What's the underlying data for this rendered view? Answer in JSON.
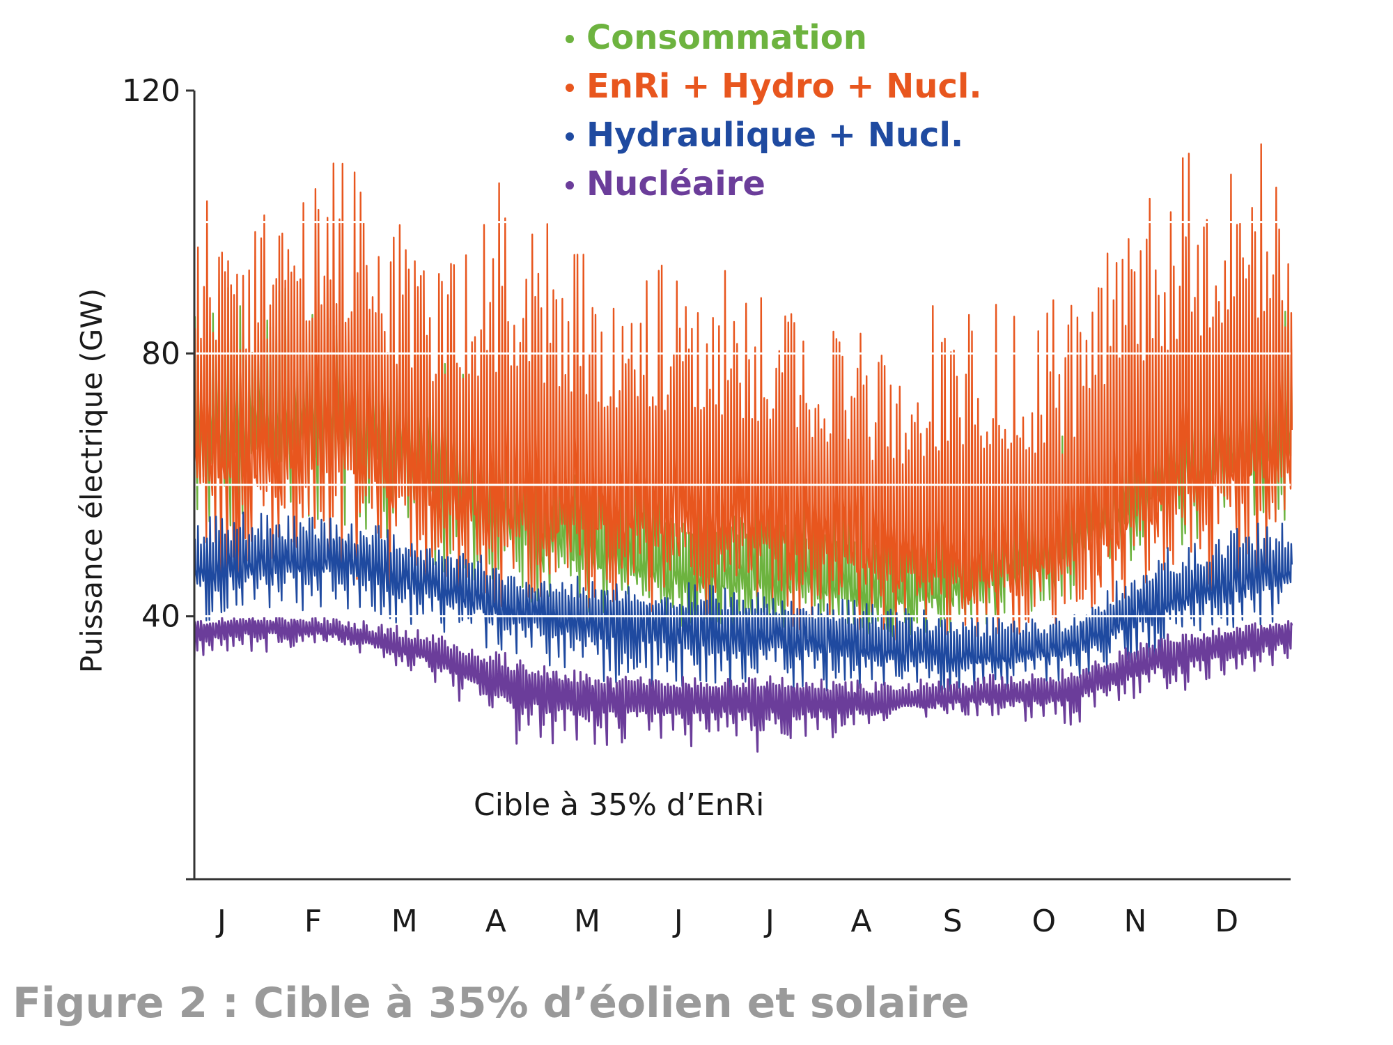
{
  "chart_data": {
    "type": "line",
    "title": "",
    "ylabel": "Puissance électrique (GW)",
    "xlabel": "",
    "ylim": [
      0,
      120
    ],
    "yticks": [
      40,
      80,
      120
    ],
    "gridlines_y": [
      40,
      60,
      80,
      100
    ],
    "grid": true,
    "legend_position": "top-center",
    "months": [
      "J",
      "F",
      "M",
      "A",
      "M",
      "J",
      "J",
      "A",
      "S",
      "O",
      "N",
      "D"
    ],
    "annotation": "Cible à 35% d’EnRi",
    "series": [
      {
        "name": "Consommation",
        "color": "#6db33f",
        "monthly_avg": [
          72,
          73,
          66,
          56,
          50,
          47,
          47,
          44,
          46,
          52,
          62,
          68
        ],
        "monthly_max": [
          92,
          88,
          80,
          74,
          66,
          62,
          62,
          58,
          62,
          68,
          80,
          84
        ],
        "monthly_min": [
          52,
          54,
          48,
          42,
          40,
          38,
          38,
          36,
          38,
          42,
          50,
          52
        ]
      },
      {
        "name": "EnRi + Hydro + Nucl.",
        "color": "#e8561e",
        "monthly_avg": [
          68,
          72,
          64,
          60,
          60,
          58,
          58,
          52,
          50,
          52,
          64,
          70
        ],
        "monthly_max": [
          100,
          113,
          95,
          110,
          90,
          96,
          88,
          82,
          93,
          88,
          109,
          115
        ],
        "monthly_min": [
          45,
          45,
          42,
          40,
          40,
          40,
          38,
          36,
          36,
          38,
          42,
          45
        ]
      },
      {
        "name": "Hydraulique + Nucl.",
        "color": "#1f4aa0",
        "monthly_avg": [
          49,
          50,
          46,
          42,
          40,
          39,
          38,
          36,
          35,
          36,
          43,
          47
        ],
        "monthly_max": [
          56,
          55,
          53,
          48,
          46,
          45,
          44,
          42,
          40,
          40,
          50,
          54
        ],
        "monthly_min": [
          40,
          41,
          38,
          34,
          30,
          28,
          29,
          28,
          28,
          30,
          34,
          38
        ]
      },
      {
        "name": "Nucléaire",
        "color": "#6b3d9a",
        "monthly_avg": [
          39,
          38,
          35,
          30,
          28,
          28,
          28,
          27,
          28,
          29,
          34,
          37
        ],
        "monthly_max": [
          40,
          40,
          38,
          34,
          31,
          31,
          31,
          30,
          31,
          32,
          37,
          39
        ],
        "monthly_min": [
          34,
          36,
          31,
          20,
          20,
          20,
          19,
          24,
          25,
          23,
          28,
          30
        ]
      }
    ]
  },
  "caption": "Figure 2 : Cible à 35% d’éolien et solaire"
}
